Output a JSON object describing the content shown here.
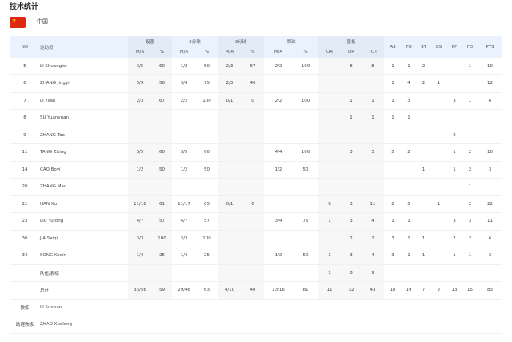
{
  "title": "技术统计",
  "team": {
    "country": "中国",
    "flag_color": "#de2910"
  },
  "header": {
    "no": "NO",
    "player": "运动员",
    "fg": "投篮",
    "p2": "2分球",
    "p3": "3分球",
    "ft": "罚球",
    "reb": "篮板",
    "ma": "M/A",
    "pct": "%",
    "or": "OR",
    "dr": "DR",
    "tot": "TOT",
    "as": "AS",
    "to": "TO",
    "st": "ST",
    "bs": "BS",
    "pf": "PF",
    "fd": "FD",
    "pts": "PTS"
  },
  "rows": [
    [
      "5",
      "LI Shuanglei",
      "3/5",
      "60",
      "1/2",
      "50",
      "2/3",
      "67",
      "2/2",
      "100",
      "",
      "8",
      "8",
      "1",
      "1",
      "2",
      "",
      "",
      "1",
      "10"
    ],
    [
      "6",
      "ZHANG Jingyi",
      "5/9",
      "56",
      "3/4",
      "75",
      "2/5",
      "40",
      "",
      "",
      "",
      "",
      "",
      "1",
      "4",
      "2",
      "1",
      "",
      "",
      "12"
    ],
    [
      "7",
      "LI Yilan",
      "2/3",
      "67",
      "2/2",
      "100",
      "0/1",
      "0",
      "2/2",
      "100",
      "",
      "1",
      "1",
      "1",
      "3",
      "",
      "",
      "3",
      "1",
      "6"
    ],
    [
      "8",
      "SU Yuanyuan",
      "",
      "",
      "",
      "",
      "",
      "",
      "",
      "",
      "",
      "1",
      "1",
      "1",
      "1",
      "",
      "",
      "",
      "",
      ""
    ],
    [
      "9",
      "ZHANG Tao",
      "",
      "",
      "",
      "",
      "",
      "",
      "",
      "",
      "",
      "",
      "",
      "",
      "",
      "",
      "",
      "2",
      "",
      ""
    ],
    [
      "11",
      "TANG Ziting",
      "3/5",
      "60",
      "3/5",
      "60",
      "",
      "",
      "4/4",
      "100",
      "",
      "3",
      "3",
      "5",
      "2",
      "",
      "",
      "1",
      "2",
      "10"
    ],
    [
      "14",
      "CAO Boyi",
      "1/2",
      "50",
      "1/2",
      "50",
      "",
      "",
      "1/2",
      "50",
      "",
      "",
      "",
      "",
      "",
      "1",
      "",
      "1",
      "2",
      "3"
    ],
    [
      "20",
      "ZHANG Mao",
      "",
      "",
      "",
      "",
      "",
      "",
      "",
      "",
      "",
      "",
      "",
      "",
      "",
      "",
      "",
      "",
      "1",
      ""
    ],
    [
      "21",
      "HAN Xu",
      "11/18",
      "61",
      "11/17",
      "65",
      "0/1",
      "0",
      "",
      "",
      "8",
      "3",
      "11",
      "2",
      "5",
      "",
      "1",
      "",
      "2",
      "22"
    ],
    [
      "23",
      "LIU Yutong",
      "4/7",
      "57",
      "4/7",
      "57",
      "",
      "",
      "3/4",
      "75",
      "1",
      "3",
      "4",
      "1",
      "1",
      "",
      "",
      "3",
      "3",
      "11"
    ],
    [
      "30",
      "JIA Saiqi",
      "3/3",
      "100",
      "3/3",
      "100",
      "",
      "",
      "",
      "",
      "",
      "2",
      "2",
      "3",
      "1",
      "1",
      "",
      "2",
      "2",
      "6"
    ],
    [
      "34",
      "SONG Kexin",
      "1/4",
      "25",
      "1/4",
      "25",
      "",
      "",
      "1/2",
      "50",
      "1",
      "3",
      "4",
      "3",
      "1",
      "1",
      "",
      "1",
      "1",
      "3"
    ],
    [
      "",
      "队伍/教练",
      "",
      "",
      "",
      "",
      "",
      "",
      "",
      "",
      "1",
      "8",
      "9",
      "",
      "",
      "",
      "",
      "",
      "",
      ""
    ],
    [
      "",
      "总计",
      "33/56",
      "59",
      "29/46",
      "63",
      "4/10",
      "40",
      "13/16",
      "81",
      "11",
      "32",
      "43",
      "18",
      "19",
      "7",
      "2",
      "13",
      "15",
      "83"
    ]
  ],
  "staff": [
    {
      "role": "教练",
      "name": "LI Sunnan"
    },
    {
      "role": "助理教练",
      "name": "ZHAO Xuelong"
    }
  ]
}
